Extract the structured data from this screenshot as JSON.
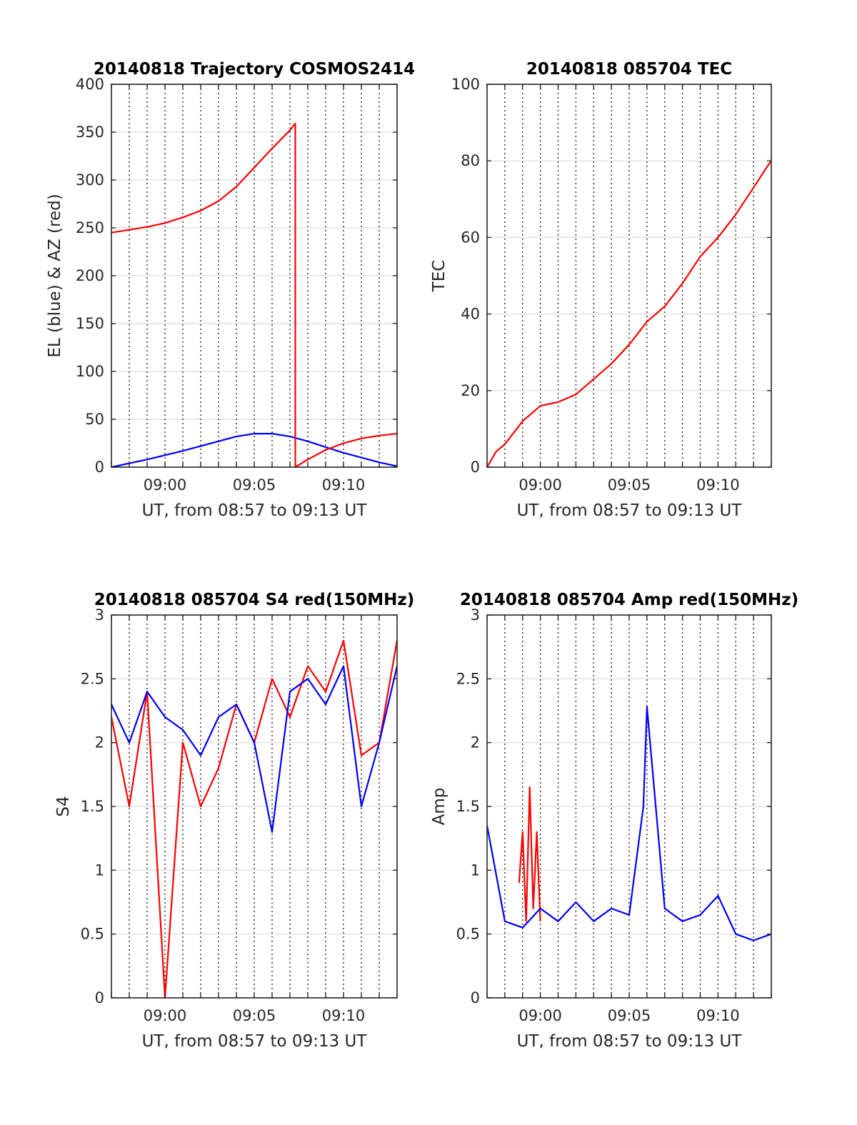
{
  "colors": {
    "el": "#0000ff",
    "az": "#ff0000",
    "red": "#ff0000",
    "blue": "#0000ff",
    "axis": "#262626"
  },
  "chart_data": [
    {
      "type": "line",
      "title": "20140818 Trajectory COSMOS2414",
      "xlabel": "UT, from 08:57 to 09:13 UT",
      "ylabel": "EL (blue) & AZ (red)",
      "xlim": [
        "08:57",
        "09:13"
      ],
      "xticks": [
        "09:00",
        "09:05",
        "09:10"
      ],
      "ylim": [
        0,
        400
      ],
      "yticks": [
        "0",
        "50",
        "100",
        "150",
        "200",
        "250",
        "300",
        "350",
        "400"
      ],
      "grid": "dotted vertical every 1 min, light horizontal",
      "series": [
        {
          "color": "blue",
          "x": [
            "08:57",
            "08:59",
            "09:01",
            "09:03",
            "09:04",
            "09:05",
            "09:06",
            "09:07",
            "09:08",
            "09:09",
            "09:10",
            "09:11",
            "09:12",
            "09:13"
          ],
          "y": [
            0,
            8,
            17,
            27,
            32,
            35,
            35,
            32,
            27,
            21,
            15,
            10,
            5,
            1
          ]
        },
        {
          "color": "red",
          "x": [
            "08:57",
            "08:58",
            "08:59",
            "09:00",
            "09:01",
            "09:02",
            "09:03",
            "09:04",
            "09:05",
            "09:06",
            "09:07",
            "09:07.3",
            "09:07.3",
            "09:08",
            "09:09",
            "09:10",
            "09:11",
            "09:12",
            "09:13"
          ],
          "y": [
            245,
            248,
            251,
            255,
            261,
            268,
            278,
            293,
            313,
            333,
            352,
            359,
            0,
            8,
            18,
            25,
            30,
            33,
            35
          ]
        }
      ]
    },
    {
      "type": "line",
      "title": "20140818 085704 TEC",
      "xlabel": "UT, from 08:57 to 09:13 UT",
      "ylabel": "TEC",
      "xlim": [
        "08:57",
        "09:13"
      ],
      "xticks": [
        "09:00",
        "09:05",
        "09:10"
      ],
      "ylim": [
        0,
        100
      ],
      "yticks": [
        "0",
        "20",
        "40",
        "60",
        "80",
        "100"
      ],
      "series": [
        {
          "color": "red",
          "x": [
            "08:57",
            "08:57.5",
            "08:58",
            "08:59",
            "09:00",
            "09:01",
            "09:02",
            "09:03",
            "09:04",
            "09:05",
            "09:06",
            "09:07",
            "09:08",
            "09:09",
            "09:10",
            "09:11",
            "09:12",
            "09:12.7",
            "09:13"
          ],
          "y": [
            0,
            4,
            6,
            12,
            16,
            17,
            19,
            23,
            27,
            32,
            38,
            42,
            48,
            55,
            60,
            66,
            73,
            78,
            80
          ]
        }
      ]
    },
    {
      "type": "line",
      "title": "20140818 085704 S4 red(150MHz)",
      "xlabel": "UT, from 08:57 to 09:13 UT",
      "ylabel": "S4",
      "xlim": [
        "08:57",
        "09:13"
      ],
      "xticks": [
        "09:00",
        "09:05",
        "09:10"
      ],
      "ylim": [
        0,
        3
      ],
      "yticks": [
        "0",
        "0.5",
        "1",
        "1.5",
        "2",
        "2.5",
        "3"
      ],
      "series": [
        {
          "color": "red",
          "x": [
            "08:57",
            "08:58",
            "08:59",
            "09:00",
            "09:01",
            "09:02",
            "09:03",
            "09:04",
            "09:05",
            "09:06",
            "09:07",
            "09:08",
            "09:09",
            "09:10",
            "09:11",
            "09:12",
            "09:13"
          ],
          "y": [
            2.2,
            1.5,
            2.4,
            0.0,
            2.0,
            1.5,
            1.8,
            2.3,
            2.0,
            2.5,
            2.2,
            2.6,
            2.4,
            2.8,
            1.9,
            2.0,
            2.8
          ]
        },
        {
          "color": "blue",
          "x": [
            "08:57",
            "08:58",
            "08:59",
            "09:00",
            "09:01",
            "09:02",
            "09:03",
            "09:04",
            "09:05",
            "09:06",
            "09:07",
            "09:08",
            "09:09",
            "09:10",
            "09:11",
            "09:12",
            "09:13"
          ],
          "y": [
            2.3,
            2.0,
            2.4,
            2.2,
            2.1,
            1.9,
            2.2,
            2.3,
            2.0,
            1.3,
            2.4,
            2.5,
            2.3,
            2.6,
            1.5,
            2.0,
            2.6
          ]
        }
      ]
    },
    {
      "type": "line",
      "title": "20140818 085704 Amp red(150MHz)",
      "xlabel": "UT, from 08:57 to 09:13 UT",
      "ylabel": "Amp",
      "xlim": [
        "08:57",
        "09:13"
      ],
      "xticks": [
        "09:00",
        "09:05",
        "09:10"
      ],
      "ylim": [
        0,
        3
      ],
      "yticks": [
        "0",
        "0.5",
        "1",
        "1.5",
        "2",
        "2.5",
        "3"
      ],
      "series": [
        {
          "color": "red",
          "x": [
            "08:58.8",
            "08:59",
            "08:59.2",
            "08:59.4",
            "08:59.6",
            "08:59.8",
            "09:00"
          ],
          "y": [
            0.9,
            1.3,
            0.6,
            1.65,
            0.7,
            1.3,
            0.6
          ]
        },
        {
          "color": "blue",
          "x": [
            "08:57",
            "08:58",
            "08:59",
            "09:00",
            "09:01",
            "09:02",
            "09:03",
            "09:04",
            "09:05",
            "09:05.8",
            "09:06",
            "09:07",
            "09:08",
            "09:09",
            "09:10",
            "09:11",
            "09:12",
            "09:13"
          ],
          "y": [
            1.35,
            0.6,
            0.55,
            0.7,
            0.6,
            0.75,
            0.6,
            0.7,
            0.65,
            1.5,
            2.28,
            0.7,
            0.6,
            0.65,
            0.8,
            0.5,
            0.45,
            0.5
          ]
        }
      ]
    }
  ]
}
